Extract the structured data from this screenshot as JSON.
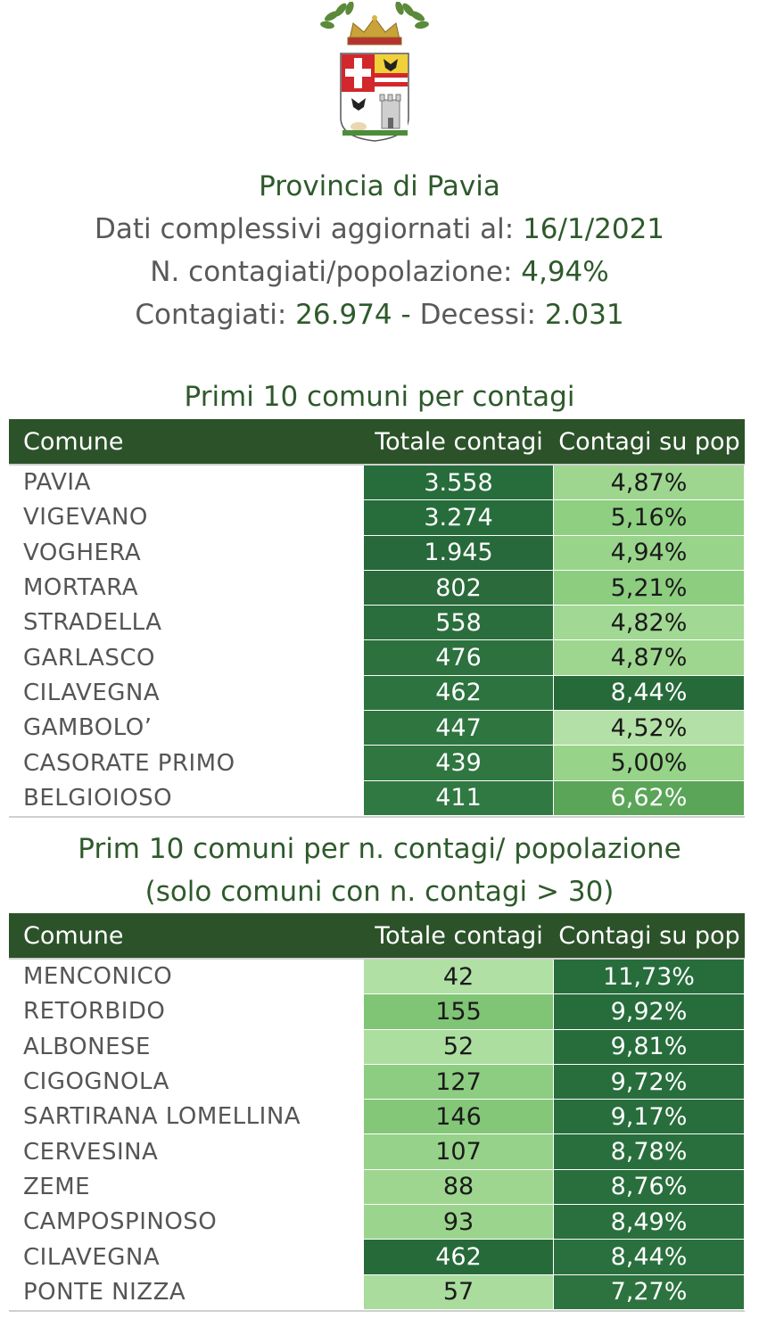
{
  "header": {
    "title": "Provincia di Pavia",
    "updated_label": "Dati complessivi aggiornati al:",
    "updated_value": "16/1/2021",
    "ratio_label": "N. contagiati/popolazione:",
    "ratio_value": "4,94%",
    "cases_label": "Contagiati:",
    "cases_value": "26.974",
    "sep": "-",
    "deaths_label": "Decessi:",
    "deaths_value": "2.031"
  },
  "colors": {
    "dark_green": "#2c5229",
    "title_green": "#2e5a2b",
    "text_grey": "#595959"
  },
  "table1": {
    "title": "Primi 10 comuni per contagi",
    "subtitle": "",
    "headers": [
      "Comune",
      "Totale contagi",
      "Contagi su pop"
    ],
    "rows": [
      {
        "comune": "PAVIA",
        "totale": "3.558",
        "pct": "4,87%",
        "c2_bg": "#276d3c",
        "c3_bg": "#9ed68f"
      },
      {
        "comune": "VIGEVANO",
        "totale": "3.274",
        "pct": "5,16%",
        "c2_bg": "#276d3c",
        "c3_bg": "#8fcf82"
      },
      {
        "comune": "VOGHERA",
        "totale": "1.945",
        "pct": "4,94%",
        "c2_bg": "#27693a",
        "c3_bg": "#99d48b"
      },
      {
        "comune": "MORTARA",
        "totale": "802",
        "pct": "5,21%",
        "c2_bg": "#2a6a3b",
        "c3_bg": "#8ccd80"
      },
      {
        "comune": "STRADELLA",
        "totale": "558",
        "pct": "4,82%",
        "c2_bg": "#2b6e3d",
        "c3_bg": "#a1d893"
      },
      {
        "comune": "GARLASCO",
        "totale": "476",
        "pct": "4,87%",
        "c2_bg": "#2c713e",
        "c3_bg": "#9ed68f"
      },
      {
        "comune": "CILAVEGNA",
        "totale": "462",
        "pct": "8,44%",
        "c2_bg": "#2d733f",
        "c3_bg": "#276a3a"
      },
      {
        "comune": "GAMBOLO’",
        "totale": "447",
        "pct": "4,52%",
        "c2_bg": "#2e7540",
        "c3_bg": "#b3e0a6"
      },
      {
        "comune": "CASORATE PRIMO",
        "totale": "439",
        "pct": "5,00%",
        "c2_bg": "#2f7641",
        "c3_bg": "#97d389"
      },
      {
        "comune": "BELGIOIOSO",
        "totale": "411",
        "pct": "6,62%",
        "c2_bg": "#317943",
        "c3_bg": "#5aa557"
      }
    ]
  },
  "table2": {
    "title": "Prim 10 comuni per n. contagi/ popolazione",
    "subtitle": "(solo comuni con n. contagi > 30)",
    "headers": [
      "Comune",
      "Totale contagi",
      "Contagi su pop"
    ],
    "rows": [
      {
        "comune": "MENCONICO",
        "totale": "42",
        "pct": "11,73%",
        "c2_bg": "#b1e0a5",
        "c3_bg": "#276d3c"
      },
      {
        "comune": "RETORBIDO",
        "totale": "155",
        "pct": "9,92%",
        "c2_bg": "#80c575",
        "c3_bg": "#276d3c"
      },
      {
        "comune": "ALBONESE",
        "totale": "52",
        "pct": "9,81%",
        "c2_bg": "#acdea0",
        "c3_bg": "#276d3c"
      },
      {
        "comune": "CIGOGNOLA",
        "totale": "127",
        "pct": "9,72%",
        "c2_bg": "#8dcd81",
        "c3_bg": "#286e3d"
      },
      {
        "comune": "SARTIRANA LOMELLINA",
        "totale": "146",
        "pct": "9,17%",
        "c2_bg": "#84c779",
        "c3_bg": "#286e3d"
      },
      {
        "comune": "CERVESINA",
        "totale": "107",
        "pct": "8,78%",
        "c2_bg": "#96d289",
        "c3_bg": "#296f3d"
      },
      {
        "comune": "ZEME",
        "totale": "88",
        "pct": "8,76%",
        "c2_bg": "#9ed690",
        "c3_bg": "#296f3d"
      },
      {
        "comune": "CAMPOSPINOSO",
        "totale": "93",
        "pct": "8,49%",
        "c2_bg": "#9bd58d",
        "c3_bg": "#2a703e"
      },
      {
        "comune": "CILAVEGNA",
        "totale": "462",
        "pct": "8,44%",
        "c2_bg": "#276a3a",
        "c3_bg": "#2a703e"
      },
      {
        "comune": "PONTE NIZZA",
        "totale": "57",
        "pct": "7,27%",
        "c2_bg": "#a9dc9d",
        "c3_bg": "#2d733f"
      }
    ]
  }
}
